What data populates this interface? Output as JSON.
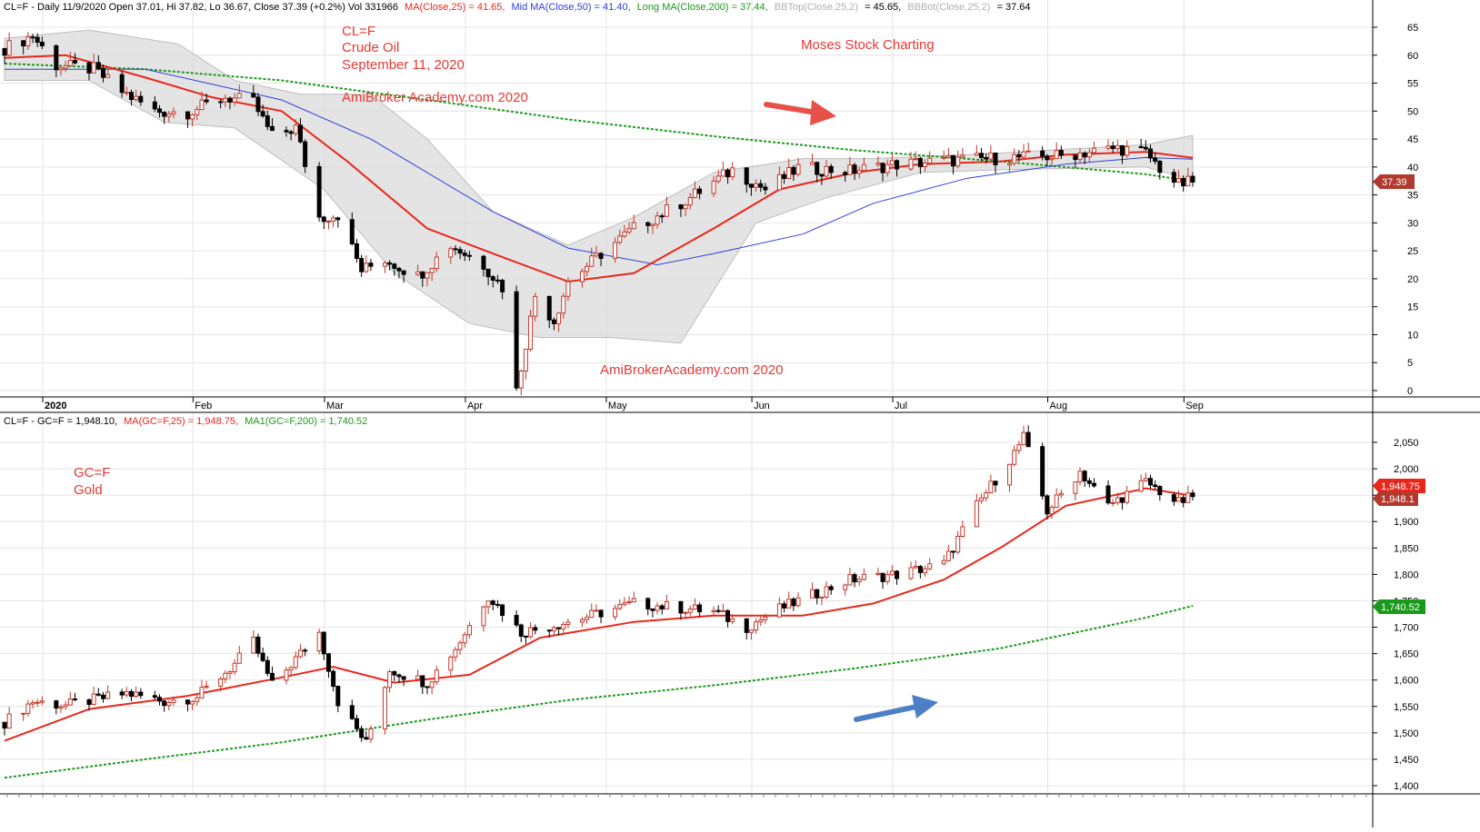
{
  "top_panel": {
    "header": {
      "prefix": "CL=F - Daily 11/9/2020 Open 37.01, Hi 37.82, Lo 36.67, Close 37.39 (+0.2%) Vol 331966",
      "ma25": "MA(Close,25) = 41.65,",
      "ma50": "Mid MA(Close,50) = 41.40,",
      "ma200": "Long MA(Close,200) = 37.44,",
      "bbtop_label": "BBTop(Close,25,2)",
      "bbtop_value": "= 45.65,",
      "bbbot_label": "BBBot(Close,25,2)",
      "bbbot_value": "= 37.64"
    },
    "annotations": {
      "ticker": "CL=F",
      "name": "Crude Oil",
      "date": "September 11, 2020",
      "site_top": "AmiBroker Academy.com  2020",
      "brand": "Moses Stock Charting",
      "site_bottom": "AmiBrokerAcademy.com  2020"
    },
    "price_tag": "37.39"
  },
  "bottom_panel": {
    "header": {
      "prefix": "CL=F - GC=F = 1,948.10,",
      "ma25": "MA(GC=F,25) = 1,948.75,",
      "ma200": "MA1(GC=F,200) = 1,740.52"
    },
    "annotations": {
      "ticker": "GC=F",
      "name": "Gold"
    },
    "tags": {
      "ma25": "1,948.75",
      "close": "1,948.1",
      "ma200": "1,740.52"
    }
  },
  "x_axis": {
    "months": [
      "2020",
      "Feb",
      "Mar",
      "Apr",
      "May",
      "Jun",
      "Jul",
      "Aug",
      "Sep"
    ]
  },
  "colors": {
    "up_candle": "#c0392b",
    "down_candle": "#000000",
    "ma25": "#e8271c",
    "ma50": "#2f3fd6",
    "ma200": "#1a9a1a",
    "band_fill": "#d9d9d9",
    "annotation": "#e53935",
    "arrow_red": "#e8504a",
    "arrow_blue": "#4d7ec8"
  },
  "chart_data": [
    {
      "type": "candlestick",
      "title": "CL=F Crude Oil",
      "ylim": [
        0,
        67
      ],
      "y_ticks": [
        0,
        5,
        10,
        15,
        20,
        25,
        30,
        35,
        40,
        45,
        50,
        55,
        60,
        65
      ],
      "close_path": [
        [
          "2020-01-02",
          61.2
        ],
        [
          "2020-01-08",
          63.5
        ],
        [
          "2020-01-13",
          58.2
        ],
        [
          "2020-01-21",
          57.5
        ],
        [
          "2020-01-27",
          53.5
        ],
        [
          "2020-02-03",
          50.0
        ],
        [
          "2020-02-10",
          49.8
        ],
        [
          "2020-02-18",
          52.5
        ],
        [
          "2020-02-24",
          51.5
        ],
        [
          "2020-02-28",
          45.5
        ],
        [
          "2020-03-04",
          47.0
        ],
        [
          "2020-03-09",
          31.0
        ],
        [
          "2020-03-13",
          31.5
        ],
        [
          "2020-03-18",
          21.5
        ],
        [
          "2020-03-23",
          23.5
        ],
        [
          "2020-03-30",
          20.5
        ],
        [
          "2020-04-06",
          26.0
        ],
        [
          "2020-04-13",
          22.5
        ],
        [
          "2020-04-17",
          18.5
        ],
        [
          "2020-04-20",
          0.0
        ],
        [
          "2020-04-24",
          17.0
        ],
        [
          "2020-04-28",
          12.5
        ],
        [
          "2020-05-01",
          19.5
        ],
        [
          "2020-05-08",
          24.5
        ],
        [
          "2020-05-15",
          29.0
        ],
        [
          "2020-05-26",
          34.0
        ],
        [
          "2020-06-05",
          39.5
        ],
        [
          "2020-06-12",
          36.0
        ],
        [
          "2020-06-19",
          39.8
        ],
        [
          "2020-06-30",
          39.3
        ],
        [
          "2020-07-10",
          40.5
        ],
        [
          "2020-07-24",
          41.3
        ],
        [
          "2020-08-04",
          41.7
        ],
        [
          "2020-08-14",
          42.0
        ],
        [
          "2020-08-26",
          43.4
        ],
        [
          "2020-09-01",
          42.5
        ],
        [
          "2020-09-04",
          39.8
        ],
        [
          "2020-09-08",
          36.8
        ],
        [
          "2020-09-11",
          37.39
        ]
      ],
      "ma25": [
        [
          "2020-01-02",
          59.5
        ],
        [
          "2020-01-15",
          60.0
        ],
        [
          "2020-02-01",
          56.0
        ],
        [
          "2020-02-15",
          52.5
        ],
        [
          "2020-03-01",
          50.0
        ],
        [
          "2020-03-15",
          41.0
        ],
        [
          "2020-04-01",
          29.0
        ],
        [
          "2020-04-15",
          24.5
        ],
        [
          "2020-05-01",
          19.5
        ],
        [
          "2020-05-15",
          21.0
        ],
        [
          "2020-06-01",
          29.0
        ],
        [
          "2020-06-15",
          36.0
        ],
        [
          "2020-07-01",
          39.0
        ],
        [
          "2020-07-15",
          40.5
        ],
        [
          "2020-08-01",
          41.0
        ],
        [
          "2020-08-15",
          42.2
        ],
        [
          "2020-09-01",
          42.7
        ],
        [
          "2020-09-11",
          41.65
        ]
      ],
      "ma50": [
        [
          "2020-01-02",
          57.5
        ],
        [
          "2020-02-01",
          57.5
        ],
        [
          "2020-03-01",
          52.0
        ],
        [
          "2020-03-20",
          45.0
        ],
        [
          "2020-04-15",
          32.0
        ],
        [
          "2020-05-01",
          25.5
        ],
        [
          "2020-05-20",
          22.5
        ],
        [
          "2020-06-01",
          24.5
        ],
        [
          "2020-06-20",
          28.0
        ],
        [
          "2020-07-05",
          33.5
        ],
        [
          "2020-07-25",
          38.0
        ],
        [
          "2020-08-15",
          40.5
        ],
        [
          "2020-09-01",
          41.7
        ],
        [
          "2020-09-11",
          41.4
        ]
      ],
      "ma200": [
        [
          "2020-01-02",
          58.5
        ],
        [
          "2020-02-01",
          57.5
        ],
        [
          "2020-03-01",
          55.5
        ],
        [
          "2020-04-01",
          52.0
        ],
        [
          "2020-05-01",
          48.5
        ],
        [
          "2020-06-01",
          45.5
        ],
        [
          "2020-07-01",
          43.0
        ],
        [
          "2020-08-01",
          41.0
        ],
        [
          "2020-09-01",
          38.7
        ],
        [
          "2020-09-11",
          37.44
        ]
      ],
      "bb_top": [
        [
          "2020-01-02",
          63.0
        ],
        [
          "2020-01-20",
          64.5
        ],
        [
          "2020-02-08",
          62.0
        ],
        [
          "2020-02-20",
          55.5
        ],
        [
          "2020-03-05",
          53.0
        ],
        [
          "2020-03-20",
          53.0
        ],
        [
          "2020-04-01",
          45.0
        ],
        [
          "2020-04-15",
          32.0
        ],
        [
          "2020-05-01",
          26.0
        ],
        [
          "2020-05-15",
          31.0
        ],
        [
          "2020-06-01",
          39.0
        ],
        [
          "2020-06-20",
          41.5
        ],
        [
          "2020-07-05",
          41.5
        ],
        [
          "2020-08-01",
          42.5
        ],
        [
          "2020-09-01",
          44.0
        ],
        [
          "2020-09-11",
          45.65
        ]
      ],
      "bb_bot": [
        [
          "2020-01-02",
          55.5
        ],
        [
          "2020-01-20",
          55.5
        ],
        [
          "2020-02-05",
          48.0
        ],
        [
          "2020-02-20",
          47.0
        ],
        [
          "2020-03-10",
          36.0
        ],
        [
          "2020-03-25",
          21.0
        ],
        [
          "2020-04-10",
          12.0
        ],
        [
          "2020-04-25",
          9.5
        ],
        [
          "2020-05-10",
          9.5
        ],
        [
          "2020-05-25",
          8.5
        ],
        [
          "2020-06-10",
          30.0
        ],
        [
          "2020-06-25",
          34.5
        ],
        [
          "2020-07-15",
          39.0
        ],
        [
          "2020-08-01",
          39.5
        ],
        [
          "2020-09-01",
          40.0
        ],
        [
          "2020-09-11",
          37.64
        ]
      ]
    },
    {
      "type": "candlestick",
      "title": "GC=F Gold",
      "ylim": [
        1390,
        2090
      ],
      "y_ticks": [
        1400,
        1450,
        1500,
        1550,
        1600,
        1650,
        1700,
        1750,
        1800,
        1850,
        1900,
        1950,
        2000,
        2050
      ],
      "y_tick_labels": [
        "1,400",
        "1,450",
        "1,500",
        "1,550",
        "1,600",
        "1,650",
        "1,700",
        "1,750",
        "1,800",
        "1,850",
        "1,900",
        "1,950",
        "2,000",
        "2,050"
      ],
      "close_path": [
        [
          "2020-01-02",
          1520
        ],
        [
          "2020-01-08",
          1560
        ],
        [
          "2020-01-15",
          1552
        ],
        [
          "2020-01-28",
          1575
        ],
        [
          "2020-02-05",
          1560
        ],
        [
          "2020-02-12",
          1568
        ],
        [
          "2020-02-20",
          1630
        ],
        [
          "2020-02-24",
          1672
        ],
        [
          "2020-02-28",
          1590
        ],
        [
          "2020-03-04",
          1640
        ],
        [
          "2020-03-09",
          1690
        ],
        [
          "2020-03-13",
          1560
        ],
        [
          "2020-03-19",
          1480
        ],
        [
          "2020-03-24",
          1620
        ],
        [
          "2020-04-01",
          1595
        ],
        [
          "2020-04-07",
          1660
        ],
        [
          "2020-04-14",
          1760
        ],
        [
          "2020-04-21",
          1690
        ],
        [
          "2020-05-01",
          1710
        ],
        [
          "2020-05-15",
          1745
        ],
        [
          "2020-06-01",
          1730
        ],
        [
          "2020-06-08",
          1700
        ],
        [
          "2020-06-15",
          1735
        ],
        [
          "2020-06-30",
          1790
        ],
        [
          "2020-07-10",
          1800
        ],
        [
          "2020-07-20",
          1820
        ],
        [
          "2020-07-27",
          1930
        ],
        [
          "2020-08-04",
          2030
        ],
        [
          "2020-08-06",
          2060
        ],
        [
          "2020-08-11",
          1920
        ],
        [
          "2020-08-18",
          1995
        ],
        [
          "2020-08-24",
          1930
        ],
        [
          "2020-09-01",
          1975
        ],
        [
          "2020-09-08",
          1935
        ],
        [
          "2020-09-11",
          1948.1
        ]
      ],
      "ma25": [
        [
          "2020-01-02",
          1485
        ],
        [
          "2020-01-20",
          1545
        ],
        [
          "2020-02-10",
          1570
        ],
        [
          "2020-03-01",
          1605
        ],
        [
          "2020-03-12",
          1625
        ],
        [
          "2020-03-25",
          1595
        ],
        [
          "2020-04-10",
          1610
        ],
        [
          "2020-04-25",
          1680
        ],
        [
          "2020-05-15",
          1710
        ],
        [
          "2020-06-01",
          1722
        ],
        [
          "2020-06-20",
          1722
        ],
        [
          "2020-07-05",
          1745
        ],
        [
          "2020-07-20",
          1790
        ],
        [
          "2020-08-01",
          1850
        ],
        [
          "2020-08-15",
          1930
        ],
        [
          "2020-09-01",
          1963
        ],
        [
          "2020-09-11",
          1948.75
        ]
      ],
      "ma200": [
        [
          "2020-01-02",
          1415
        ],
        [
          "2020-02-01",
          1450
        ],
        [
          "2020-03-01",
          1482
        ],
        [
          "2020-04-01",
          1525
        ],
        [
          "2020-05-01",
          1562
        ],
        [
          "2020-06-01",
          1590
        ],
        [
          "2020-07-01",
          1622
        ],
        [
          "2020-08-01",
          1660
        ],
        [
          "2020-09-01",
          1718
        ],
        [
          "2020-09-11",
          1740.52
        ]
      ]
    }
  ]
}
